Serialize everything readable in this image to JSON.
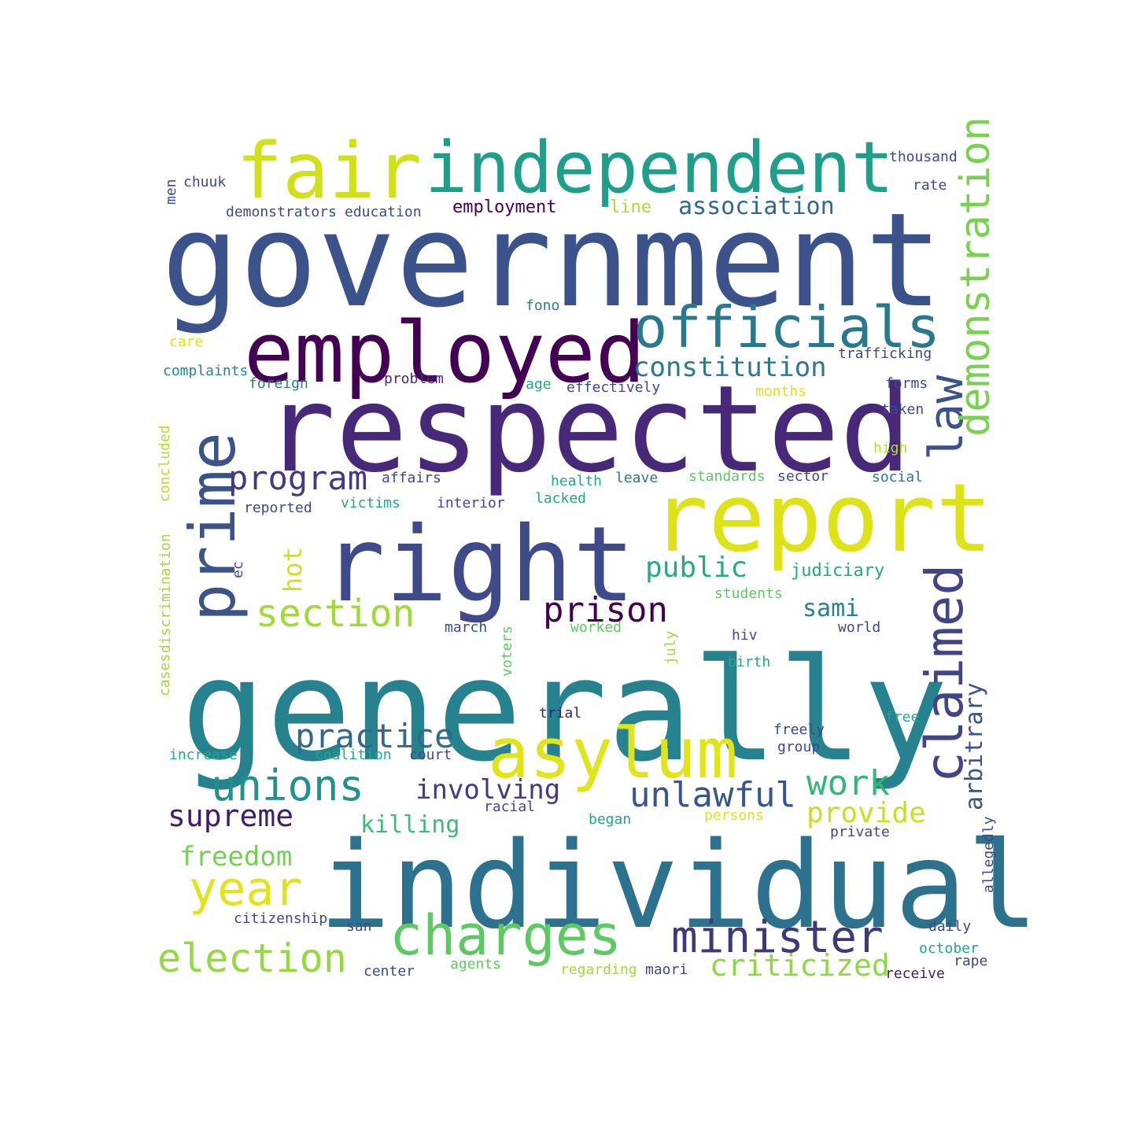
{
  "words": [
    {
      "text": "government",
      "color": "#3b528b"
    },
    {
      "text": "generally",
      "color": "#26828e"
    },
    {
      "text": "individual",
      "color": "#2c728e"
    },
    {
      "text": "respected",
      "color": "#482878"
    },
    {
      "text": "right",
      "color": "#3e4a89"
    },
    {
      "text": "report",
      "color": "#dde318"
    },
    {
      "text": "employed",
      "color": "#440154"
    },
    {
      "text": "independent",
      "color": "#1f9e89"
    },
    {
      "text": "fair",
      "color": "#d0e11c"
    },
    {
      "text": "officials",
      "color": "#2a788e"
    },
    {
      "text": "prime",
      "color": "#3b528b"
    },
    {
      "text": "asylum",
      "color": "#e0e41a"
    },
    {
      "text": "charges",
      "color": "#5ec962"
    },
    {
      "text": "claimed",
      "color": "#414487"
    },
    {
      "text": "law",
      "color": "#3b528b"
    },
    {
      "text": "demonstration",
      "color": "#7ad151"
    },
    {
      "text": "minister",
      "color": "#3e3a7a"
    },
    {
      "text": "unions",
      "color": "#20928c"
    },
    {
      "text": "section",
      "color": "#a0da39"
    },
    {
      "text": "election",
      "color": "#95d840"
    },
    {
      "text": "year",
      "color": "#e1e41d"
    },
    {
      "text": "prison",
      "color": "#440154"
    },
    {
      "text": "practice",
      "color": "#31688e"
    },
    {
      "text": "unlawful",
      "color": "#39568c"
    },
    {
      "text": "program",
      "color": "#443a83"
    },
    {
      "text": "constitution",
      "color": "#2a788e"
    },
    {
      "text": "work",
      "color": "#35b779"
    },
    {
      "text": "supreme",
      "color": "#3e1e6e"
    },
    {
      "text": "criticized",
      "color": "#8fd744"
    },
    {
      "text": "involving",
      "color": "#443983"
    },
    {
      "text": "provide",
      "color": "#c8e020"
    },
    {
      "text": "arbitrary",
      "color": "#3b528b"
    },
    {
      "text": "freedom",
      "color": "#75d054"
    },
    {
      "text": "association",
      "color": "#31688e"
    },
    {
      "text": "public",
      "color": "#25ab82"
    },
    {
      "text": "sami",
      "color": "#27808e"
    },
    {
      "text": "hot",
      "color": "#cde11d"
    },
    {
      "text": "killing",
      "color": "#3dbc74"
    },
    {
      "text": "employment",
      "color": "#440154"
    },
    {
      "text": "judiciary",
      "color": "#22a785"
    },
    {
      "text": "line",
      "color": "#a8db34"
    },
    {
      "text": "thousand",
      "color": "#3e4989"
    },
    {
      "text": "rate",
      "color": "#3e4989"
    },
    {
      "text": "men",
      "color": "#3e4989"
    },
    {
      "text": "chuuk",
      "color": "#3e4989"
    },
    {
      "text": "demonstrators",
      "color": "#3e4989"
    },
    {
      "text": "education",
      "color": "#3e4989"
    },
    {
      "text": "fono",
      "color": "#26828e"
    },
    {
      "text": "care",
      "color": "#dde318"
    },
    {
      "text": "trafficking",
      "color": "#3e4989"
    },
    {
      "text": "complaints",
      "color": "#23888e"
    },
    {
      "text": "foreign",
      "color": "#2a788e"
    },
    {
      "text": "problem",
      "color": "#482878"
    },
    {
      "text": "age",
      "color": "#22a884"
    },
    {
      "text": "effectively",
      "color": "#3e4989"
    },
    {
      "text": "months",
      "color": "#dde318"
    },
    {
      "text": "forms",
      "color": "#3e4989"
    },
    {
      "text": "taken",
      "color": "#3e4989"
    },
    {
      "text": "concluded",
      "color": "#b5de2b"
    },
    {
      "text": "high",
      "color": "#b5de2b"
    },
    {
      "text": "affairs",
      "color": "#3e4989"
    },
    {
      "text": "health",
      "color": "#22a884"
    },
    {
      "text": "leave",
      "color": "#2a788e"
    },
    {
      "text": "standards",
      "color": "#5ec962"
    },
    {
      "text": "sector",
      "color": "#3e4989"
    },
    {
      "text": "social",
      "color": "#2a788e"
    },
    {
      "text": "reported",
      "color": "#3e4989"
    },
    {
      "text": "victims",
      "color": "#22a884"
    },
    {
      "text": "interior",
      "color": "#3e4989"
    },
    {
      "text": "lacked",
      "color": "#22a884"
    },
    {
      "text": "discrimination",
      "color": "#a0da39"
    },
    {
      "text": "ec",
      "color": "#3e4989"
    },
    {
      "text": "students",
      "color": "#5ec962"
    },
    {
      "text": "cases",
      "color": "#a0da39"
    },
    {
      "text": "march",
      "color": "#3e4989"
    },
    {
      "text": "voters",
      "color": "#5ec962"
    },
    {
      "text": "worked",
      "color": "#5ec962"
    },
    {
      "text": "july",
      "color": "#a0da39"
    },
    {
      "text": "hiv",
      "color": "#3e4989"
    },
    {
      "text": "world",
      "color": "#3e4989"
    },
    {
      "text": "birth",
      "color": "#22a884"
    },
    {
      "text": "trial",
      "color": "#3e1e6e"
    },
    {
      "text": "free",
      "color": "#22a884"
    },
    {
      "text": "freely",
      "color": "#3e4989"
    },
    {
      "text": "group",
      "color": "#3e4989"
    },
    {
      "text": "increase",
      "color": "#22a884"
    },
    {
      "text": "coalition",
      "color": "#22a884"
    },
    {
      "text": "court",
      "color": "#3e4989"
    },
    {
      "text": "racial",
      "color": "#3e4989"
    },
    {
      "text": "began",
      "color": "#22a884"
    },
    {
      "text": "persons",
      "color": "#dde318"
    },
    {
      "text": "private",
      "color": "#3e4989"
    },
    {
      "text": "allegedly",
      "color": "#3e4989"
    },
    {
      "text": "citizenship",
      "color": "#3e4989"
    },
    {
      "text": "san",
      "color": "#3e4989"
    },
    {
      "text": "daily",
      "color": "#3e4989"
    },
    {
      "text": "october",
      "color": "#22a884"
    },
    {
      "text": "center",
      "color": "#3e4989"
    },
    {
      "text": "agents",
      "color": "#5ec962"
    },
    {
      "text": "regarding",
      "color": "#a0da39"
    },
    {
      "text": "maori",
      "color": "#3e4989"
    },
    {
      "text": "rape",
      "color": "#3e4989"
    },
    {
      "text": "receive",
      "color": "#3e1e6e"
    }
  ]
}
